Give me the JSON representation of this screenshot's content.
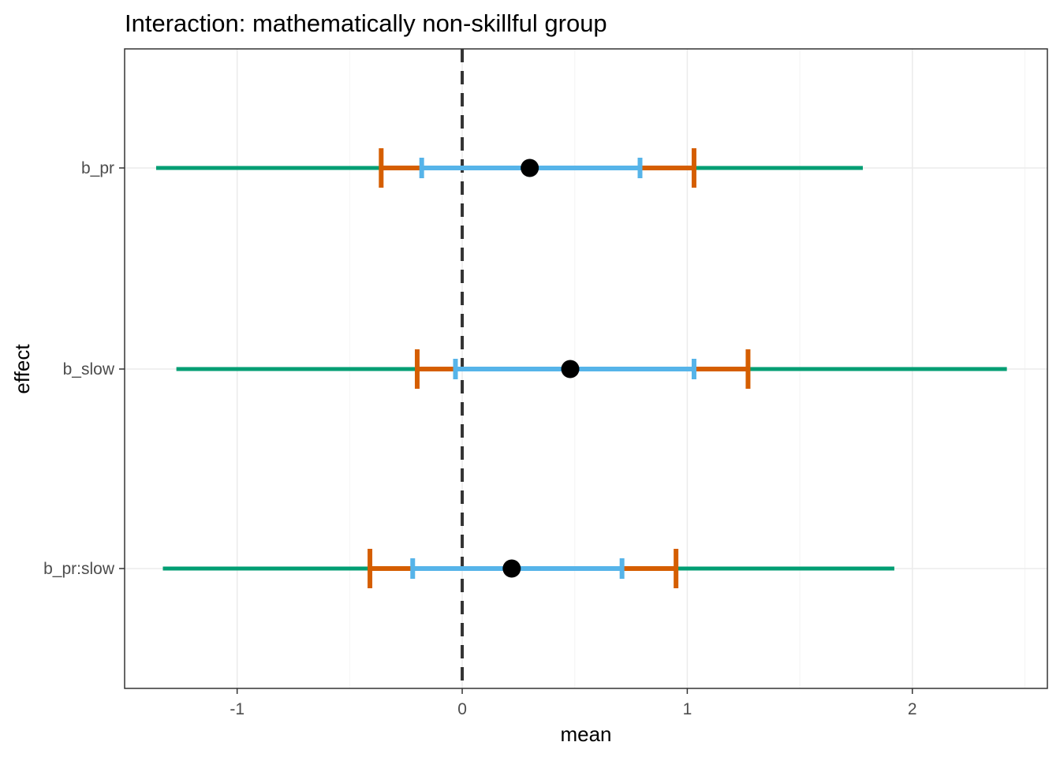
{
  "chart_data": {
    "type": "forest",
    "title": "Interaction: mathematically non-skillful group",
    "xlabel": "mean",
    "ylabel": "effect",
    "xlim": [
      -1.5,
      2.6
    ],
    "x_ticks": [
      -1,
      0,
      1,
      2
    ],
    "x_tick_labels": [
      "-1",
      "0",
      "1",
      "2"
    ],
    "grid": true,
    "reference_line": 0,
    "categories": [
      "b_pr",
      "b_slow",
      "b_pr:slow"
    ],
    "rows": [
      {
        "effect": "b_pr",
        "mean": 0.3,
        "outer": [
          -1.36,
          1.78
        ],
        "middle": [
          -0.36,
          1.03
        ],
        "inner": [
          -0.18,
          0.79
        ]
      },
      {
        "effect": "b_slow",
        "mean": 0.48,
        "outer": [
          -1.27,
          2.42
        ],
        "middle": [
          -0.2,
          1.27
        ],
        "inner": [
          -0.03,
          1.03
        ]
      },
      {
        "effect": "b_pr:slow",
        "mean": 0.22,
        "outer": [
          -1.33,
          1.92
        ],
        "middle": [
          -0.41,
          0.95
        ],
        "inner": [
          -0.22,
          0.71
        ]
      }
    ],
    "colors": {
      "outer": "#009E73",
      "middle": "#D55E00",
      "inner": "#56B4E9",
      "point": "#000000",
      "reference": "#333333",
      "grid_major": "#EBEBEB",
      "grid_minor": "#F4F4F4",
      "panel_border": "#333333"
    }
  }
}
